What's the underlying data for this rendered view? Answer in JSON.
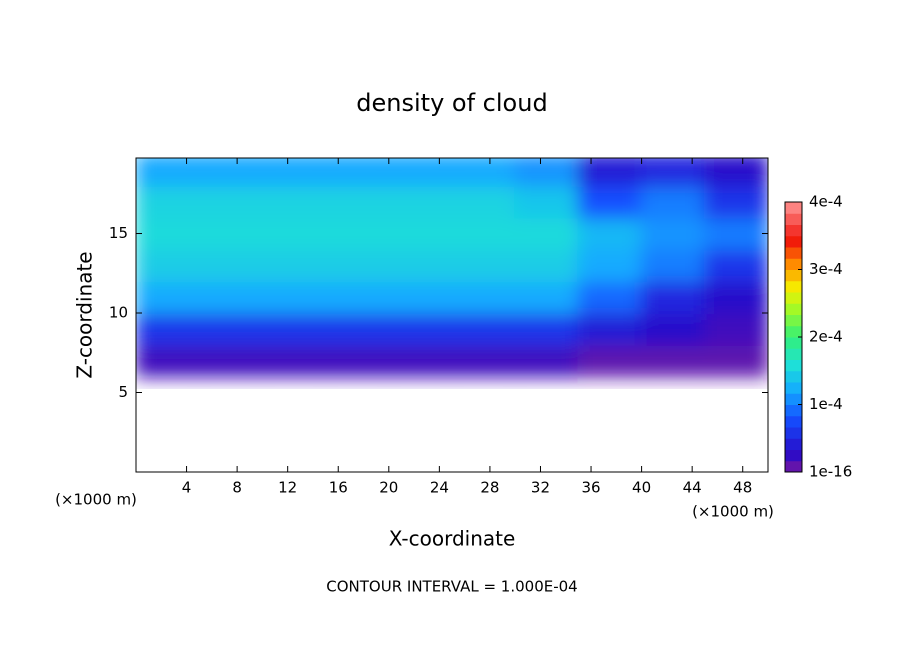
{
  "chart_data": {
    "type": "contourf",
    "title": "density of cloud",
    "x_label": "X-coordinate",
    "y_label": "Z-coordinate",
    "x_unit": "(×1000 m)",
    "y_unit": "(×1000 m)",
    "footnote": "CONTOUR INTERVAL = 1.000E-04",
    "xlim": [
      0,
      50
    ],
    "ylim": [
      0,
      19.75
    ],
    "xticks": [
      4,
      8,
      12,
      16,
      20,
      24,
      28,
      32,
      36,
      40,
      44,
      48
    ],
    "yticks": [
      5,
      10,
      15
    ],
    "colorbar_lim": [
      0,
      0.0004
    ],
    "colorbar_ticks": [
      {
        "value": 1e-16,
        "label": "1e-16"
      },
      {
        "value": 0.0001,
        "label": "1e-4"
      },
      {
        "value": 0.0002,
        "label": "2e-4"
      },
      {
        "value": 0.0003,
        "label": "3e-4"
      },
      {
        "value": 0.0004,
        "label": "4e-4"
      }
    ],
    "x": [
      2.5,
      7.5,
      12.5,
      17.5,
      22.5,
      27.5,
      32.5,
      37.5,
      42.5,
      47.5
    ],
    "y": [
      1,
      3,
      5,
      7,
      9,
      11,
      13,
      15,
      17,
      19
    ],
    "z": [
      [
        0,
        0,
        0,
        0,
        0,
        0,
        0,
        0,
        0,
        0
      ],
      [
        0,
        0,
        0,
        0,
        0,
        0,
        0,
        0,
        0,
        0
      ],
      [
        0,
        0,
        0,
        0,
        0,
        0,
        0,
        0,
        0,
        0
      ],
      [
        2e-05,
        2e-05,
        2e-05,
        2e-05,
        2e-05,
        2e-05,
        2e-05,
        1e-05,
        1e-05,
        1e-05
      ],
      [
        6e-05,
        6e-05,
        6e-05,
        6e-05,
        6e-05,
        6e-05,
        6e-05,
        4e-05,
        3e-05,
        2e-05
      ],
      [
        0.00012,
        0.00012,
        0.00012,
        0.00012,
        0.00012,
        0.00012,
        0.00012,
        9e-05,
        5e-05,
        3e-05
      ],
      [
        0.000145,
        0.000145,
        0.000145,
        0.000145,
        0.000145,
        0.000145,
        0.000145,
        0.00012,
        0.0001,
        6e-05
      ],
      [
        0.000155,
        0.000155,
        0.000155,
        0.000155,
        0.000155,
        0.000155,
        0.000155,
        0.00013,
        0.00011,
        0.0001
      ],
      [
        0.00015,
        0.00015,
        0.00015,
        0.00015,
        0.00015,
        0.00015,
        0.00014,
        8e-05,
        0.0001,
        6e-05
      ],
      [
        0.00012,
        0.00012,
        0.00012,
        0.00012,
        0.00012,
        0.00012,
        0.00011,
        4e-05,
        5e-05,
        3e-05
      ]
    ]
  }
}
